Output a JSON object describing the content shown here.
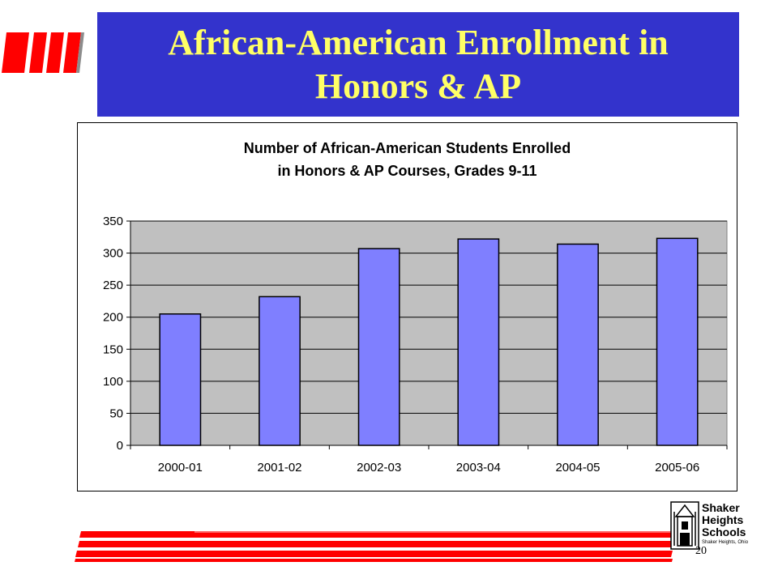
{
  "slide": {
    "title_line1": "African-American Enrollment in",
    "title_line2": "Honors & AP",
    "page_number": "20",
    "title_band_color": "#3333cc",
    "title_text_color": "#ffff66",
    "accent_red": "#ff0000"
  },
  "logo": {
    "line1": "Shaker",
    "line2": "Heights",
    "line3": "Schools",
    "tagline": "Shaker Heights, Ohio",
    "icon": "building-icon"
  },
  "chart_data": {
    "type": "bar",
    "title_line1": "Number of African-American Students Enrolled",
    "title_line2": "in Honors & AP Courses, Grades 9-11",
    "categories": [
      "2000-01",
      "2001-02",
      "2002-03",
      "2003-04",
      "2004-05",
      "2005-06"
    ],
    "values": [
      205,
      232,
      307,
      322,
      314,
      323
    ],
    "ylim": [
      0,
      350
    ],
    "yticks": [
      0,
      50,
      100,
      150,
      200,
      250,
      300,
      350
    ],
    "grid": true,
    "legend": "none",
    "bar_color": "#7f7fff",
    "plot_background": "#c0c0c0"
  }
}
